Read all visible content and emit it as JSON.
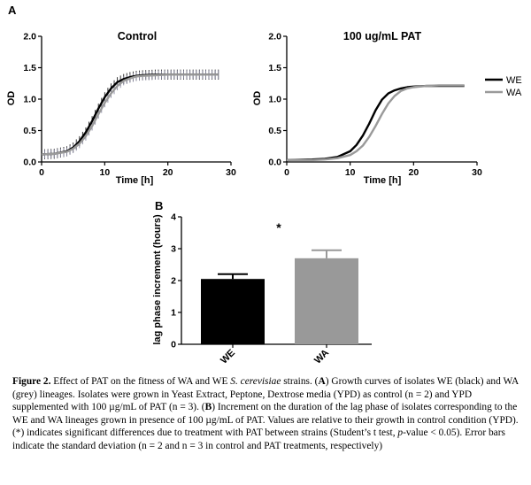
{
  "panel_a_label": "A",
  "panel_b_label": "B",
  "chart_data": [
    {
      "type": "line",
      "panel": "A",
      "title": "Control",
      "xlabel": "Time [h]",
      "ylabel": "OD",
      "xlim": [
        0,
        30
      ],
      "ylim": [
        0,
        2.0
      ],
      "xticks": [
        0,
        10,
        20,
        30
      ],
      "yticks": [
        "0.0",
        "0.5",
        "1.0",
        "1.5",
        "2.0"
      ],
      "error_bars": true,
      "series": [
        {
          "name": "WE",
          "color": "#000000",
          "x": [
            0,
            2,
            4,
            5,
            6,
            7,
            8,
            9,
            10,
            11,
            12,
            13,
            14,
            15,
            16,
            18,
            20,
            22,
            24,
            26,
            28
          ],
          "y": [
            0.12,
            0.13,
            0.17,
            0.23,
            0.33,
            0.47,
            0.65,
            0.85,
            1.03,
            1.17,
            1.27,
            1.32,
            1.35,
            1.37,
            1.38,
            1.39,
            1.39,
            1.39,
            1.39,
            1.39,
            1.39
          ],
          "err": 0.08
        },
        {
          "name": "WA",
          "color": "#9a9a9a",
          "x": [
            0,
            2,
            4,
            5,
            6,
            7,
            8,
            9,
            10,
            11,
            12,
            13,
            14,
            15,
            16,
            18,
            20,
            22,
            24,
            26,
            28
          ],
          "y": [
            0.12,
            0.13,
            0.16,
            0.21,
            0.29,
            0.41,
            0.57,
            0.76,
            0.94,
            1.09,
            1.21,
            1.29,
            1.33,
            1.36,
            1.37,
            1.38,
            1.39,
            1.39,
            1.39,
            1.39,
            1.39
          ],
          "err": 0.07
        }
      ]
    },
    {
      "type": "line",
      "panel": "A",
      "title": "100 ug/mL PAT",
      "xlabel": "Time [h]",
      "ylabel": "OD",
      "xlim": [
        0,
        30
      ],
      "ylim": [
        0,
        2.0
      ],
      "xticks": [
        0,
        10,
        20,
        30
      ],
      "yticks": [
        "0.0",
        "0.5",
        "1.0",
        "1.5",
        "2.0"
      ],
      "legend": "right",
      "series": [
        {
          "name": "WE",
          "color": "#000000",
          "x": [
            0,
            4,
            6,
            8,
            10,
            11,
            12,
            13,
            14,
            15,
            16,
            17,
            18,
            19,
            20,
            22,
            24,
            26,
            28
          ],
          "y": [
            0.03,
            0.04,
            0.05,
            0.08,
            0.17,
            0.27,
            0.42,
            0.61,
            0.82,
            0.99,
            1.09,
            1.14,
            1.17,
            1.19,
            1.2,
            1.21,
            1.21,
            1.21,
            1.21
          ]
        },
        {
          "name": "WA",
          "color": "#9a9a9a",
          "x": [
            0,
            4,
            6,
            8,
            10,
            11,
            12,
            13,
            14,
            15,
            16,
            17,
            18,
            19,
            20,
            22,
            24,
            26,
            28
          ],
          "y": [
            0.03,
            0.03,
            0.04,
            0.06,
            0.11,
            0.17,
            0.26,
            0.4,
            0.57,
            0.76,
            0.93,
            1.05,
            1.13,
            1.17,
            1.19,
            1.21,
            1.22,
            1.22,
            1.22
          ]
        }
      ]
    },
    {
      "type": "bar",
      "panel": "B",
      "categories": [
        "WE",
        "WA"
      ],
      "values": [
        2.05,
        2.7
      ],
      "errors": [
        0.15,
        0.25
      ],
      "colors": [
        "#000000",
        "#999999"
      ],
      "ylabel": "lag phase increment (hours)",
      "ylim": [
        0,
        4
      ],
      "yticks": [
        "0",
        "1",
        "2",
        "3",
        "4"
      ],
      "annotation": "*"
    }
  ],
  "caption": {
    "label": "Figure 2.",
    "s1": " Effect of PAT on the fitness of WA and WE ",
    "species": "S. cerevisiae",
    "s2": " strains. (",
    "a": "A",
    "s3": ") Growth curves of isolates WE (black) and WA (grey) lineages. Isolates were grown in Yeast Extract, Peptone, Dextrose media (YPD) as control (n = 2) and YPD supplemented with 100 µg/mL of PAT (n = 3). (",
    "b": "B",
    "s4": ") Increment on the duration of the lag phase of isolates corresponding to the WE and WA lineages grown in presence of 100 µg/mL of PAT. Values are relative to their growth in control condition (YPD). (*) indicates significant differences due to treatment with PAT between strains (Student’s t test, ",
    "p": "p",
    "s5": "-value < 0.05). Error bars indicate the standard deviation (n = 2 and n = 3 in control and PAT treatments, respectively)"
  }
}
